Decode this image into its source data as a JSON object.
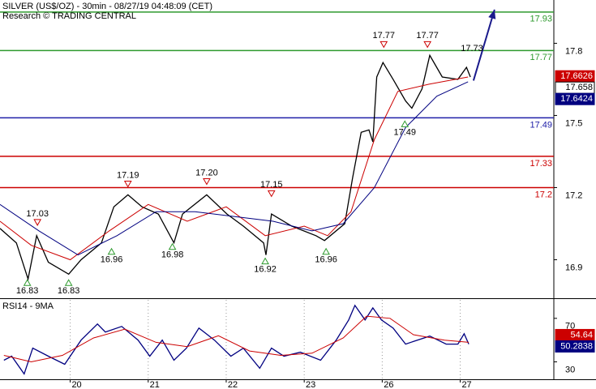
{
  "chart_data": [
    {
      "type": "line",
      "title": "SILVER (US$/OZ) - 30min - 08/27/19 04:48:09 (CET)",
      "subtitle": "Research © TRADING CENTRAL",
      "xlim": [
        0.1,
        7.2
      ],
      "ylim": [
        16.74,
        17.98
      ],
      "yticks": [
        16.9,
        17.2,
        17.5,
        17.8
      ],
      "series": [
        {
          "color": "#000000",
          "x": [
            0.1,
            0.31,
            0.46,
            0.57,
            0.72,
            0.98,
            1.14,
            1.4,
            1.56,
            1.74,
            1.92,
            2.13,
            2.33,
            2.44,
            2.75,
            3.01,
            3.22,
            3.48,
            3.51,
            3.58,
            3.84,
            4.15,
            4.26,
            4.52,
            4.62,
            4.73,
            4.83,
            4.88,
            4.93,
            5.01,
            5.14,
            5.3,
            5.38,
            5.51,
            5.61,
            5.77,
            5.97,
            6.08,
            6.13
          ],
          "values": [
            17.03,
            16.97,
            16.82,
            17.0,
            16.89,
            16.84,
            16.9,
            16.97,
            17.12,
            17.17,
            17.12,
            17.09,
            16.97,
            17.09,
            17.17,
            17.09,
            17.04,
            16.97,
            16.92,
            17.09,
            17.04,
            17.0,
            16.98,
            17.05,
            17.24,
            17.43,
            17.44,
            17.39,
            17.66,
            17.72,
            17.65,
            17.56,
            17.53,
            17.61,
            17.75,
            17.66,
            17.65,
            17.7,
            17.66
          ]
        },
        {
          "color": "#cc0000",
          "x": [
            0.1,
            0.5,
            1.0,
            1.5,
            2.0,
            2.5,
            3.0,
            3.5,
            4.0,
            4.3,
            4.6,
            4.9,
            5.2,
            5.6,
            6.1
          ],
          "values": [
            17.06,
            16.96,
            16.9,
            17.02,
            17.13,
            17.06,
            17.12,
            17.0,
            17.04,
            17.0,
            17.1,
            17.4,
            17.6,
            17.63,
            17.66
          ]
        },
        {
          "color": "#000080",
          "x": [
            0.1,
            0.6,
            1.1,
            1.6,
            2.1,
            2.6,
            3.1,
            3.6,
            4.1,
            4.5,
            4.9,
            5.3,
            5.7,
            6.1
          ],
          "values": [
            17.13,
            17.02,
            16.92,
            17.0,
            17.1,
            17.1,
            17.08,
            17.06,
            17.02,
            17.05,
            17.2,
            17.45,
            17.58,
            17.64
          ]
        }
      ],
      "levels": [
        {
          "value": 17.93,
          "color": "#2e9a2e"
        },
        {
          "value": 17.77,
          "color": "#2e9a2e"
        },
        {
          "value": 17.49,
          "color": "#2020a8"
        },
        {
          "value": 17.33,
          "color": "#cc0000"
        },
        {
          "value": 17.2,
          "color": "#cc0000"
        }
      ],
      "pivots": [
        {
          "x": 0.45,
          "value": 16.83,
          "label": "16.83",
          "kind": "low"
        },
        {
          "x": 0.58,
          "value": 17.03,
          "label": "17.03",
          "kind": "high"
        },
        {
          "x": 0.98,
          "value": 16.83,
          "label": "16.83",
          "kind": "low"
        },
        {
          "x": 1.53,
          "value": 16.96,
          "label": "16.96",
          "kind": "low"
        },
        {
          "x": 1.74,
          "value": 17.19,
          "label": "17.19",
          "kind": "high"
        },
        {
          "x": 2.31,
          "value": 16.98,
          "label": "16.98",
          "kind": "low"
        },
        {
          "x": 2.75,
          "value": 17.2,
          "label": "17.20",
          "kind": "high"
        },
        {
          "x": 3.5,
          "value": 16.92,
          "label": "16.92",
          "kind": "low"
        },
        {
          "x": 3.58,
          "value": 17.15,
          "label": "17.15",
          "kind": "high"
        },
        {
          "x": 4.28,
          "value": 16.96,
          "label": "16.96",
          "kind": "low"
        },
        {
          "x": 5.02,
          "value": 17.77,
          "label": "17.77",
          "kind": "high"
        },
        {
          "x": 5.29,
          "value": 17.49,
          "label": "17.49",
          "kind": "low"
        },
        {
          "x": 5.58,
          "value": 17.77,
          "label": "17.77",
          "kind": "high"
        },
        {
          "x": 6.15,
          "value": 17.73,
          "label": "17.73",
          "kind": "text"
        }
      ],
      "forecast": {
        "color": "#1a1a8c",
        "x": [
          6.17,
          6.44
        ],
        "values": [
          17.645,
          17.94
        ]
      },
      "last_values": [
        {
          "value": 17.6626,
          "color": "#cc0000"
        },
        {
          "value": 17.658,
          "color": "#ffffff"
        },
        {
          "value": 17.6424,
          "color": "#000080"
        }
      ]
    },
    {
      "type": "line",
      "title": "RSI14 - 9MA",
      "xlim": [
        0.1,
        7.2
      ],
      "ylim": [
        14,
        87
      ],
      "yticks": [
        30,
        70
      ],
      "xticks": [
        {
          "value": 1,
          "label": "20"
        },
        {
          "value": 2,
          "label": "21"
        },
        {
          "value": 3,
          "label": "22"
        },
        {
          "value": 4,
          "label": "23"
        },
        {
          "value": 5,
          "label": "26"
        },
        {
          "value": 6,
          "label": "27"
        }
      ],
      "grid": true,
      "series": [
        {
          "color": "#000080",
          "x": [
            0.15,
            0.25,
            0.41,
            0.52,
            0.72,
            0.93,
            1.14,
            1.35,
            1.45,
            1.66,
            1.87,
            2.02,
            2.18,
            2.33,
            2.49,
            2.65,
            2.85,
            3.06,
            3.22,
            3.43,
            3.58,
            3.74,
            3.95,
            4.21,
            4.41,
            4.57,
            4.65,
            4.78,
            4.88,
            4.99,
            5.14,
            5.3,
            5.45,
            5.61,
            5.82,
            5.97,
            6.05,
            6.11
          ],
          "values": [
            31.5,
            35.2,
            18.9,
            42.6,
            35.2,
            27.8,
            50,
            64.8,
            57.4,
            62.6,
            50,
            35.2,
            50,
            31.5,
            42.6,
            61.1,
            50,
            35.2,
            42.6,
            24.1,
            42.6,
            35.2,
            38.9,
            31.5,
            50,
            68.5,
            81.9,
            68.5,
            79.6,
            68.5,
            61.1,
            46.3,
            50,
            53.7,
            46.3,
            46.3,
            55.9,
            46.3
          ]
        },
        {
          "color": "#cc0000",
          "x": [
            0.15,
            0.5,
            0.9,
            1.3,
            1.7,
            2.1,
            2.5,
            2.9,
            3.3,
            3.7,
            4.1,
            4.5,
            4.8,
            5.1,
            5.4,
            5.8,
            6.11
          ],
          "values": [
            36,
            30,
            36,
            52,
            60,
            48,
            44,
            54,
            40,
            36,
            38,
            52,
            72,
            70,
            55,
            50,
            48
          ]
        }
      ],
      "last_values": [
        {
          "value": 54.64,
          "color": "#cc0000"
        },
        {
          "value": 50.2838,
          "color": "#000080"
        }
      ]
    }
  ]
}
